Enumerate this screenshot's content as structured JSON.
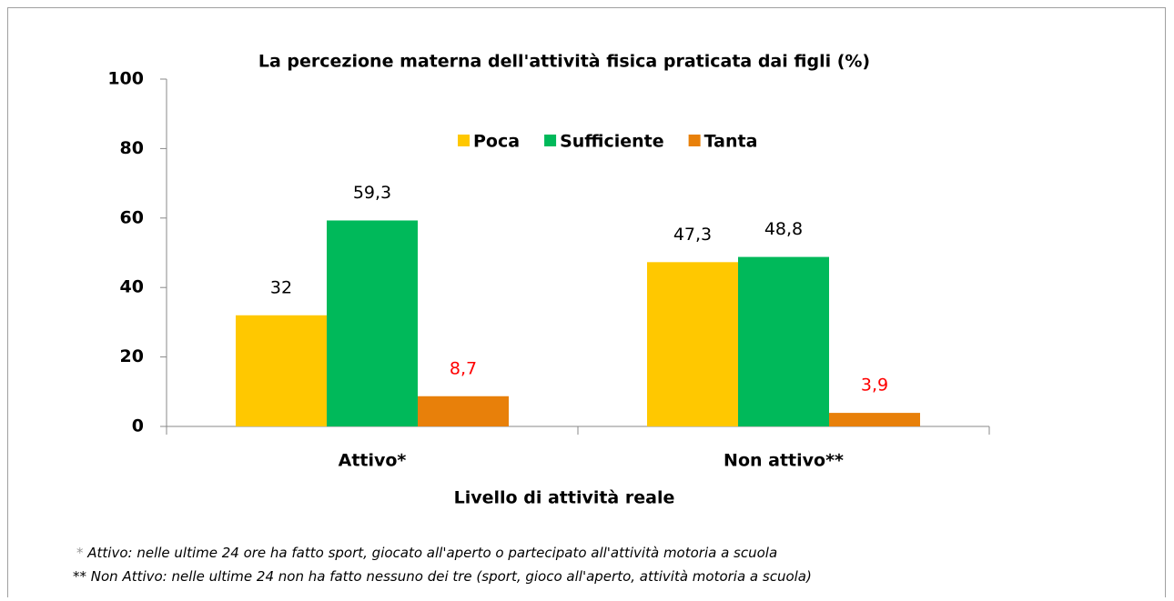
{
  "chart_data": {
    "type": "bar",
    "title": "La percezione materna dell'attività fisica praticata dai figli (%)",
    "x_label": "Livello di attività reale",
    "categories": [
      "Attivo*",
      "Non attivo**"
    ],
    "series": [
      {
        "name": "Poca",
        "color": "#ffc800",
        "label_color": "#000000",
        "values": [
          32,
          47.3
        ],
        "value_labels": [
          "32",
          "47,3"
        ]
      },
      {
        "name": "Sufficiente",
        "color": "#00b95a",
        "label_color": "#000000",
        "values": [
          59.3,
          48.8
        ],
        "value_labels": [
          "59,3",
          "48,8"
        ]
      },
      {
        "name": "Tanta",
        "color": "#e8800a",
        "label_color": "#ff0000",
        "values": [
          8.7,
          3.9
        ],
        "value_labels": [
          "8,7",
          "3,9"
        ]
      }
    ],
    "ylim": [
      0,
      100
    ],
    "yticks": [
      0,
      20,
      40,
      60,
      80,
      100
    ],
    "legend": "top",
    "notes": [
      {
        "marker": "*",
        "text": " Attivo: nelle ultime 24 ore ha fatto sport, giocato all'aperto o partecipato all'attività motoria a scuola"
      },
      {
        "marker": "**",
        "text": " Non Attivo: nelle ultime 24 non ha fatto nessuno dei tre (sport, gioco all'aperto, attività motoria a scuola)"
      }
    ]
  }
}
